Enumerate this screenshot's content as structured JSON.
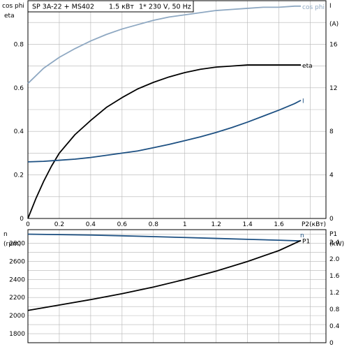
{
  "header": {
    "model": "SP 3A-22 + MS402",
    "power": "1.5 кВт",
    "supply": "1* 230 V, 50 Hz"
  },
  "colors": {
    "cos_phi": "#8ea8c2",
    "eta": "#000000",
    "current": "#1d5082",
    "speed": "#1d5082",
    "p1": "#000000",
    "grid": "#b5b5b5",
    "frame": "#000000"
  },
  "chart_data": [
    {
      "type": "line",
      "xlabel": "P2(кВт)",
      "xlim": [
        0,
        1.9
      ],
      "xticks": [
        0,
        0.2,
        0.4,
        0.6,
        0.8,
        1,
        1.2,
        1.4,
        1.6
      ],
      "left_axis": {
        "labels": [
          "cos phi",
          "eta"
        ],
        "ylim": [
          0,
          1.0
        ],
        "ticks": [
          0,
          0.2,
          0.4,
          0.6,
          0.8
        ]
      },
      "right_axis": {
        "labels": [
          "I",
          "(A)"
        ],
        "ylim": [
          0,
          20
        ],
        "ticks": [
          0,
          4,
          8,
          12,
          16
        ]
      },
      "grid": true,
      "series": [
        {
          "name": "cos phi",
          "axis": "left",
          "x": [
            0,
            0.1,
            0.2,
            0.3,
            0.4,
            0.5,
            0.6,
            0.7,
            0.8,
            0.9,
            1.0,
            1.1,
            1.2,
            1.3,
            1.4,
            1.5,
            1.6,
            1.7,
            1.74
          ],
          "y": [
            0.62,
            0.69,
            0.74,
            0.78,
            0.815,
            0.845,
            0.87,
            0.89,
            0.91,
            0.925,
            0.935,
            0.945,
            0.955,
            0.96,
            0.965,
            0.97,
            0.97,
            0.975,
            0.975
          ]
        },
        {
          "name": "eta",
          "axis": "left",
          "x": [
            0,
            0.05,
            0.1,
            0.15,
            0.2,
            0.3,
            0.4,
            0.5,
            0.6,
            0.7,
            0.8,
            0.9,
            1.0,
            1.1,
            1.2,
            1.3,
            1.4,
            1.5,
            1.6,
            1.7,
            1.74
          ],
          "y": [
            0,
            0.09,
            0.17,
            0.24,
            0.3,
            0.385,
            0.45,
            0.51,
            0.555,
            0.595,
            0.625,
            0.65,
            0.67,
            0.685,
            0.695,
            0.7,
            0.705,
            0.705,
            0.705,
            0.705,
            0.705
          ]
        },
        {
          "name": "I",
          "axis": "right",
          "x": [
            0,
            0.1,
            0.2,
            0.3,
            0.4,
            0.5,
            0.6,
            0.7,
            0.8,
            0.9,
            1.0,
            1.1,
            1.2,
            1.3,
            1.4,
            1.5,
            1.6,
            1.7,
            1.74
          ],
          "y": [
            5.2,
            5.25,
            5.35,
            5.45,
            5.6,
            5.8,
            6.0,
            6.2,
            6.5,
            6.8,
            7.15,
            7.5,
            7.9,
            8.35,
            8.85,
            9.4,
            9.95,
            10.55,
            10.85
          ]
        }
      ]
    },
    {
      "type": "line",
      "left_axis": {
        "labels": [
          "n",
          "(rpm)"
        ],
        "ylim": [
          1700,
          2950
        ],
        "ticks": [
          1800,
          2000,
          2200,
          2400,
          2600,
          2800
        ]
      },
      "right_axis": {
        "labels": [
          "P1",
          "(kW)"
        ],
        "ylim": [
          0,
          2.7
        ],
        "ticks": [
          0,
          0.4,
          0.8,
          1.2,
          1.6,
          2.0,
          2.4
        ]
      },
      "xlim": [
        0,
        1.9
      ],
      "grid": true,
      "series": [
        {
          "name": "n",
          "axis": "left",
          "x": [
            0,
            0.2,
            0.4,
            0.6,
            0.8,
            1.0,
            1.2,
            1.4,
            1.6,
            1.74
          ],
          "y": [
            2900,
            2895,
            2890,
            2882,
            2873,
            2863,
            2853,
            2843,
            2833,
            2825
          ]
        },
        {
          "name": "P1",
          "axis": "right",
          "x": [
            0,
            0.2,
            0.4,
            0.6,
            0.8,
            1.0,
            1.2,
            1.4,
            1.6,
            1.74
          ],
          "y": [
            0.77,
            0.9,
            1.03,
            1.17,
            1.33,
            1.51,
            1.71,
            1.94,
            2.2,
            2.44
          ]
        }
      ]
    }
  ]
}
